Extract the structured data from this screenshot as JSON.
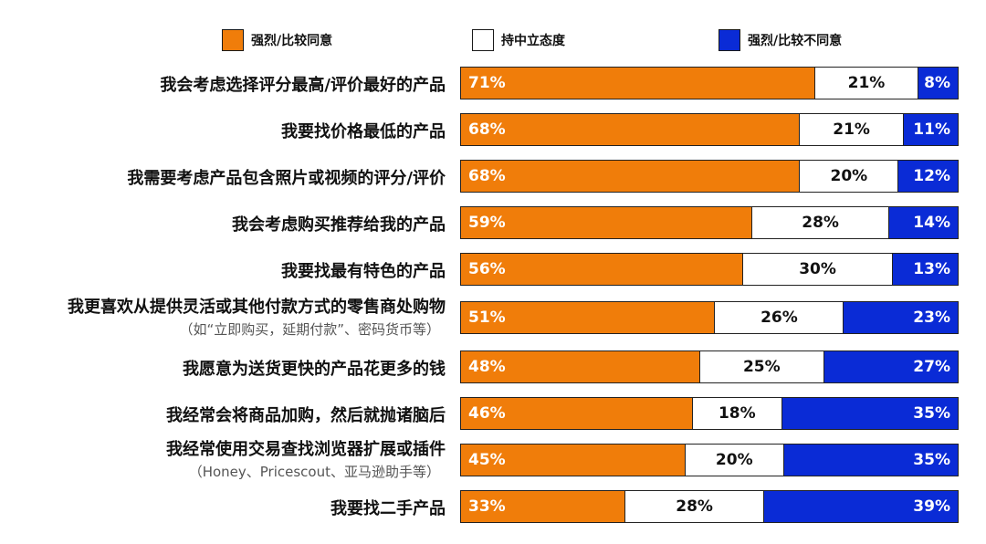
{
  "chart_data": {
    "type": "bar",
    "orientation": "horizontal",
    "stacked": true,
    "normalized": "100%",
    "legend_position": "top",
    "grid": false,
    "xlim": [
      0,
      100
    ],
    "colors": {
      "agree": "#f07d0a",
      "neutral": "#ffffff",
      "disagree": "#0a2bd6"
    },
    "legend": [
      {
        "key": "agree",
        "label": "强烈/比较同意"
      },
      {
        "key": "neutral",
        "label": "持中立态度"
      },
      {
        "key": "disagree",
        "label": "强烈/比较不同意"
      }
    ],
    "categories": [
      {
        "label": "我会考虑选择评分最高/评价最好的产品",
        "sub": ""
      },
      {
        "label": "我要找价格最低的产品",
        "sub": ""
      },
      {
        "label": "我需要考虑产品包含照片或视频的评分/评价",
        "sub": ""
      },
      {
        "label": "我会考虑购买推荐给我的产品",
        "sub": ""
      },
      {
        "label": "我要找最有特色的产品",
        "sub": ""
      },
      {
        "label": "我更喜欢从提供灵活或其他付款方式的零售商处购物",
        "sub": "（如“立即购买，延期付款”、密码货币等）"
      },
      {
        "label": "我愿意为送货更快的产品花更多的钱",
        "sub": ""
      },
      {
        "label": "我经常会将商品加购，然后就抛诸脑后",
        "sub": ""
      },
      {
        "label": "我经常使用交易查找浏览器扩展或插件",
        "sub": "（Honey、Pricescout、亚马逊助手等）"
      },
      {
        "label": "我要找二手产品",
        "sub": ""
      }
    ],
    "series": [
      {
        "key": "agree",
        "name": "强烈/比较同意",
        "values": [
          71,
          68,
          68,
          59,
          56,
          51,
          48,
          46,
          45,
          33
        ],
        "labels": [
          "71%",
          "68%",
          "68%",
          "59%",
          "56%",
          "51%",
          "48%",
          "46%",
          "45%",
          "33%"
        ]
      },
      {
        "key": "neutral",
        "name": "持中立态度",
        "values": [
          21,
          21,
          20,
          28,
          30,
          26,
          25,
          18,
          20,
          28
        ],
        "labels": [
          "21%",
          "21%",
          "20%",
          "28%",
          "30%",
          "26%",
          "25%",
          "18%",
          "20%",
          "28%"
        ]
      },
      {
        "key": "disagree",
        "name": "强烈/比较不同意",
        "values": [
          8,
          11,
          12,
          14,
          13,
          23,
          27,
          35,
          35,
          39
        ],
        "labels": [
          "8%",
          "11%",
          "12%",
          "14%",
          "13%",
          "23%",
          "27%",
          "35%",
          "35%",
          "39%"
        ]
      }
    ]
  }
}
